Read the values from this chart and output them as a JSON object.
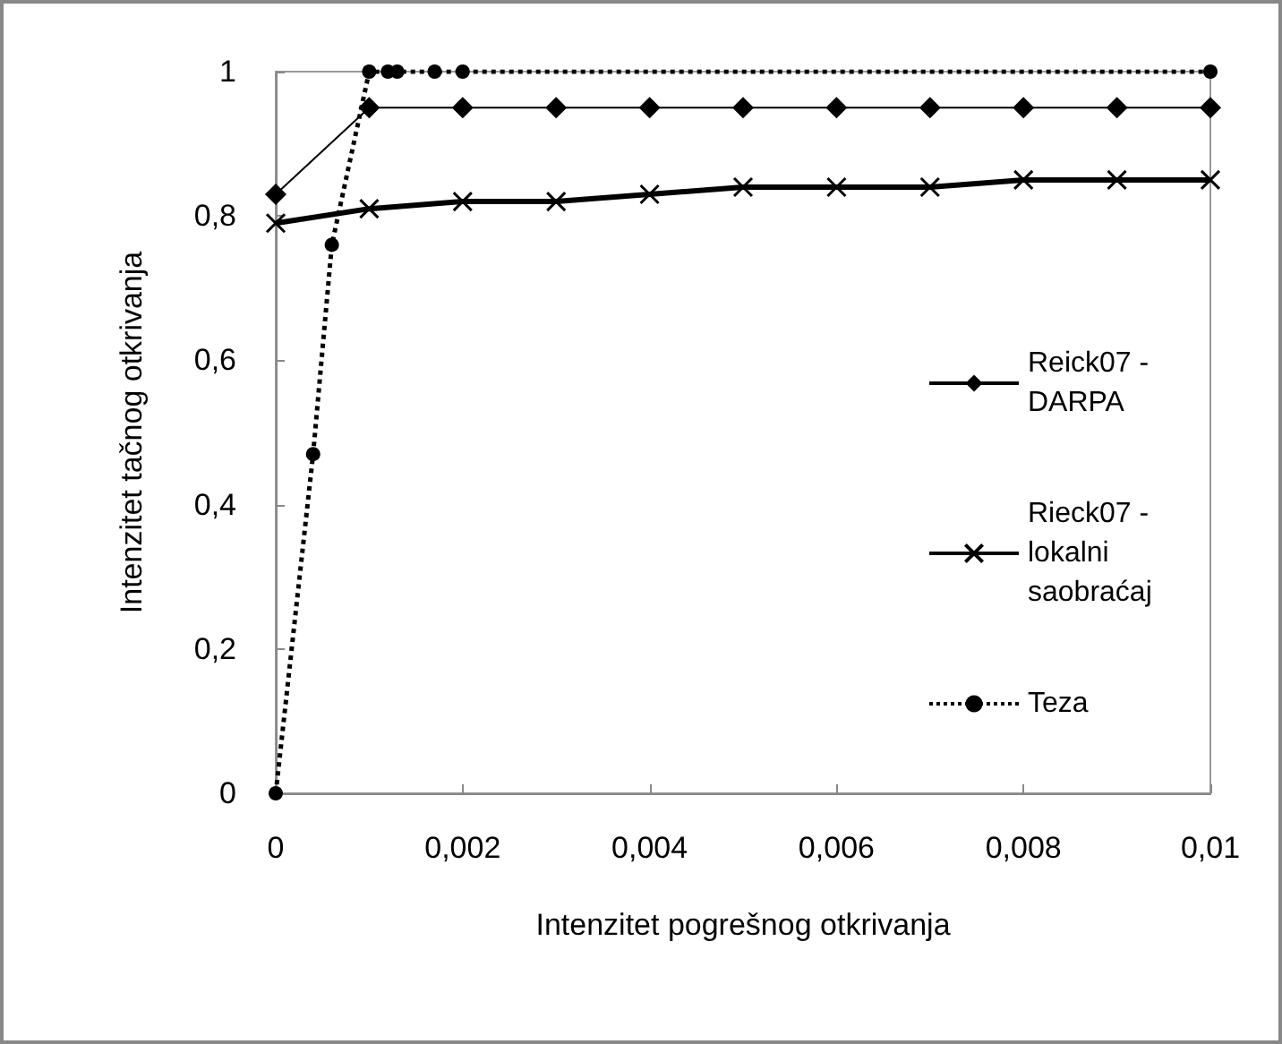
{
  "chart_data": {
    "type": "line",
    "xlabel": "Intenzitet pogrešnog otkrivanja",
    "ylabel": "Intenzitet tačnog otkrivanja",
    "xlim": [
      0,
      0.01
    ],
    "ylim": [
      0,
      1
    ],
    "xticks": [
      {
        "value": 0,
        "label": "0"
      },
      {
        "value": 0.002,
        "label": "0,002"
      },
      {
        "value": 0.004,
        "label": "0,004"
      },
      {
        "value": 0.006,
        "label": "0,006"
      },
      {
        "value": 0.008,
        "label": "0,008"
      },
      {
        "value": 0.01,
        "label": "0,01"
      }
    ],
    "yticks": [
      {
        "value": 0,
        "label": "0"
      },
      {
        "value": 0.2,
        "label": "0,2"
      },
      {
        "value": 0.4,
        "label": "0,4"
      },
      {
        "value": 0.6,
        "label": "0,6"
      },
      {
        "value": 0.8,
        "label": "0,8"
      },
      {
        "value": 1,
        "label": "1"
      }
    ],
    "grid": false,
    "legend": "right",
    "series": [
      {
        "name": "Reick07 - DARPA",
        "color": "#000000",
        "marker": "diamond",
        "line_style": "solid",
        "x": [
          0,
          0.001,
          0.002,
          0.003,
          0.004,
          0.005,
          0.006,
          0.007,
          0.008,
          0.009,
          0.01
        ],
        "values": [
          0.83,
          0.95,
          0.95,
          0.95,
          0.95,
          0.95,
          0.95,
          0.95,
          0.95,
          0.95,
          0.95
        ]
      },
      {
        "name": "Rieck07 - lokalni saobraćaj",
        "color": "#000000",
        "marker": "cross",
        "line_style": "solid",
        "x": [
          0,
          0.001,
          0.002,
          0.003,
          0.004,
          0.005,
          0.006,
          0.007,
          0.008,
          0.009,
          0.01
        ],
        "values": [
          0.79,
          0.81,
          0.82,
          0.82,
          0.83,
          0.84,
          0.84,
          0.84,
          0.85,
          0.85,
          0.85
        ]
      },
      {
        "name": "Teza",
        "color": "#000000",
        "marker": "circle",
        "line_style": "dotted",
        "x": [
          0,
          0.0004,
          0.0006,
          0.001,
          0.0012,
          0.0013,
          0.0017,
          0.002,
          0.01
        ],
        "values": [
          0,
          0.47,
          0.76,
          1,
          1,
          1,
          1,
          1,
          1
        ]
      }
    ]
  }
}
